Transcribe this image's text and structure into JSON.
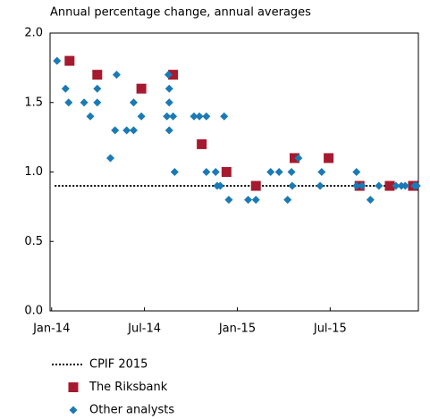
{
  "chart_data": {
    "type": "scatter",
    "subtitle": "Annual percentage change, annual averages",
    "xlim": [
      -0.1,
      23.7
    ],
    "ylim": [
      0,
      2
    ],
    "xticks": [
      {
        "value": 0,
        "label": "Jan-14"
      },
      {
        "value": 6,
        "label": "Jul-14"
      },
      {
        "value": 12,
        "label": "Jan-15"
      },
      {
        "value": 18,
        "label": "Jul-15"
      }
    ],
    "yticks": [
      {
        "value": 0,
        "label": "0.0"
      },
      {
        "value": 0.5,
        "label": "0.5"
      },
      {
        "value": 1,
        "label": "1.0"
      },
      {
        "value": 1.5,
        "label": "1.5"
      },
      {
        "value": 2,
        "label": "2.0"
      }
    ],
    "grid": false,
    "legend": "bottom",
    "series": [
      {
        "name": "CPIF 2015",
        "color": "#000000",
        "marker": "dotted-line",
        "x": [
          0.2,
          23.7
        ],
        "values": [
          0.9,
          0.9
        ]
      },
      {
        "name": "The Riksbank",
        "color": "#a6192e",
        "marker": "square",
        "x": [
          1.16,
          2.95,
          5.8,
          7.85,
          9.7,
          11.3,
          13.2,
          15.7,
          17.9,
          19.9,
          21.85,
          23.35
        ],
        "values": [
          1.8,
          1.7,
          1.6,
          1.7,
          1.2,
          1.0,
          0.9,
          1.1,
          1.1,
          0.9,
          0.9,
          0.9
        ]
      },
      {
        "name": "Other analysts",
        "color": "#1a7ab5",
        "marker": "diamond",
        "x": [
          0.35,
          0.9,
          1.1,
          2.1,
          2.5,
          2.95,
          2.95,
          3.8,
          4.1,
          4.2,
          4.85,
          5.3,
          5.3,
          5.8,
          7.45,
          7.55,
          7.6,
          7.6,
          7.6,
          7.85,
          7.95,
          9.2,
          9.55,
          10.0,
          10.0,
          10.6,
          10.7,
          10.9,
          11.15,
          11.45,
          12.7,
          13.2,
          14.15,
          14.7,
          15.25,
          15.5,
          15.55,
          15.95,
          17.35,
          17.45,
          19.7,
          19.7,
          20.05,
          20.6,
          21.15,
          22.25,
          22.6,
          22.85,
          23.45,
          23.6
        ],
        "values": [
          1.8,
          1.6,
          1.5,
          1.5,
          1.4,
          1.6,
          1.5,
          1.1,
          1.3,
          1.7,
          1.3,
          1.5,
          1.3,
          1.4,
          1.4,
          1.7,
          1.6,
          1.5,
          1.3,
          1.4,
          1.0,
          1.4,
          1.4,
          1.4,
          1.0,
          1.0,
          0.9,
          0.9,
          1.4,
          0.8,
          0.8,
          0.8,
          1.0,
          1.0,
          0.8,
          1.0,
          0.9,
          1.1,
          0.9,
          1.0,
          1.0,
          0.9,
          0.9,
          0.8,
          0.9,
          0.9,
          0.9,
          0.9,
          0.9,
          0.9
        ]
      }
    ]
  }
}
